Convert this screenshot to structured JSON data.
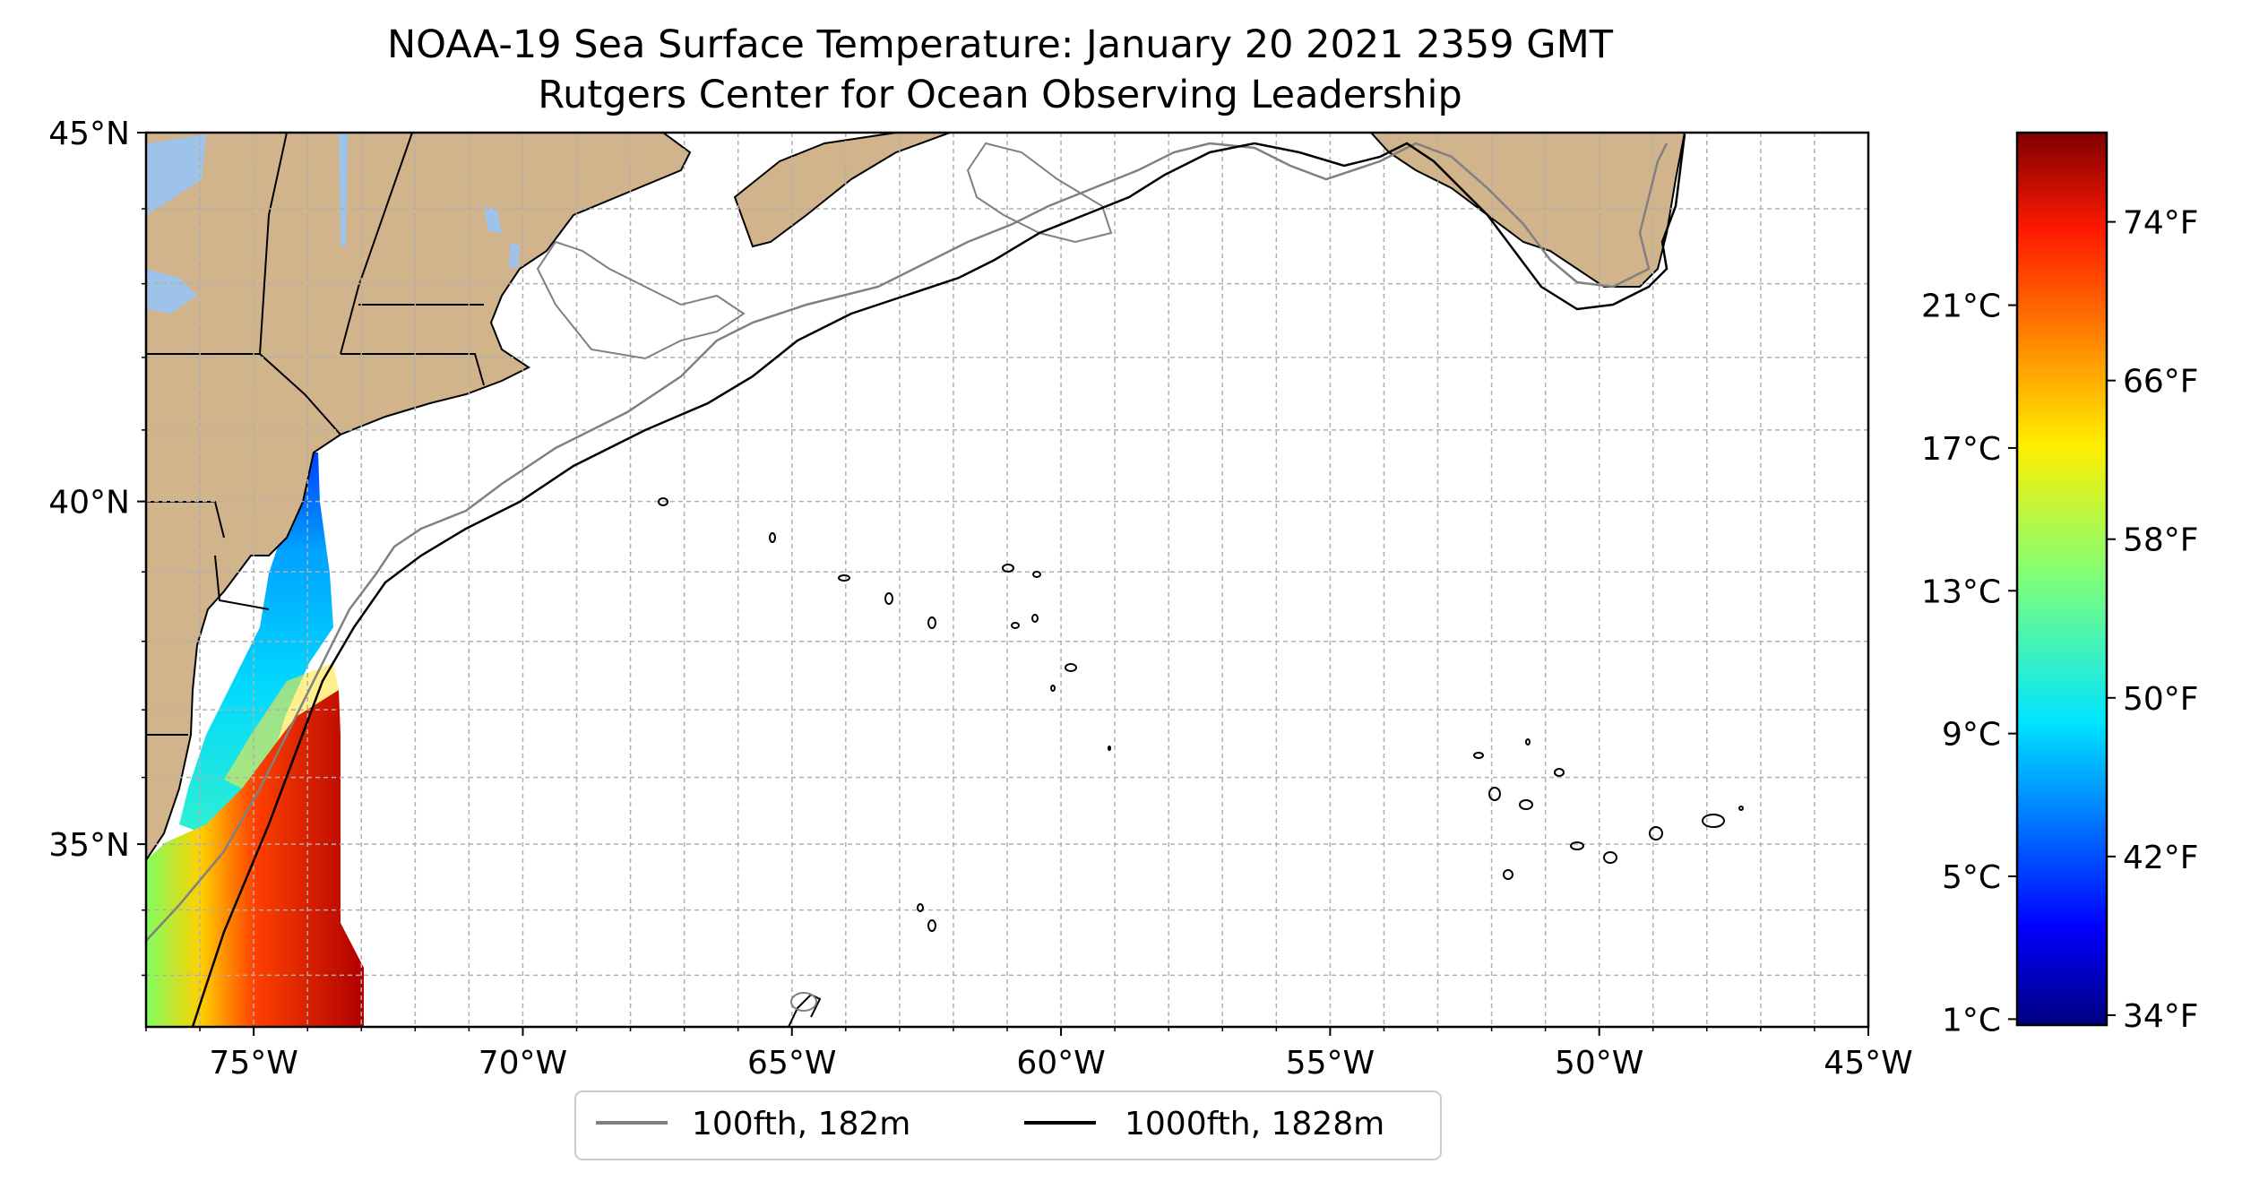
{
  "figure": {
    "title_line1": "NOAA-19 Sea Surface Temperature: January 20 2021 2359 GMT",
    "title_line2": "Rutgers Center for Ocean Observing Leadership"
  },
  "map": {
    "extent": {
      "lon": [
        -77,
        -45
      ],
      "lat": [
        32.2,
        45
      ]
    },
    "lon_ticks": [
      {
        "value": -75,
        "label": "75°W"
      },
      {
        "value": -70,
        "label": "70°W"
      },
      {
        "value": -65,
        "label": "65°W"
      },
      {
        "value": -60,
        "label": "60°W"
      },
      {
        "value": -55,
        "label": "55°W"
      },
      {
        "value": -50,
        "label": "50°W"
      },
      {
        "value": -45,
        "label": "45°W"
      }
    ],
    "lat_ticks": [
      {
        "value": 45,
        "label": "45°N"
      },
      {
        "value": 40,
        "label": "40°N"
      },
      {
        "value": 35,
        "label": "35°N"
      }
    ],
    "gridlines": true,
    "colors": {
      "land": "#d2b48c",
      "lakes": "#9ec3ea",
      "contour_100fth": "#808080",
      "contour_1000fth": "#000000",
      "grid": "#b0b0b0"
    }
  },
  "legend": {
    "placement": "below map",
    "items": [
      {
        "label": "100fth, 182m",
        "color": "#808080"
      },
      {
        "label": "1000fth, 1828m",
        "color": "#000000"
      }
    ]
  },
  "colorbar": {
    "colormap": "jet",
    "celsius_ticks": [
      {
        "value": 1,
        "label": "1°C"
      },
      {
        "value": 5,
        "label": "5°C"
      },
      {
        "value": 9,
        "label": "9°C"
      },
      {
        "value": 13,
        "label": "13°C"
      },
      {
        "value": 17,
        "label": "17°C"
      },
      {
        "value": 21,
        "label": "21°C"
      }
    ],
    "fahrenheit_ticks": [
      {
        "value": 34,
        "label": "34°F"
      },
      {
        "value": 42,
        "label": "42°F"
      },
      {
        "value": 50,
        "label": "50°F"
      },
      {
        "value": 58,
        "label": "58°F"
      },
      {
        "value": 66,
        "label": "66°F"
      },
      {
        "value": 74,
        "label": "74°F"
      }
    ]
  }
}
